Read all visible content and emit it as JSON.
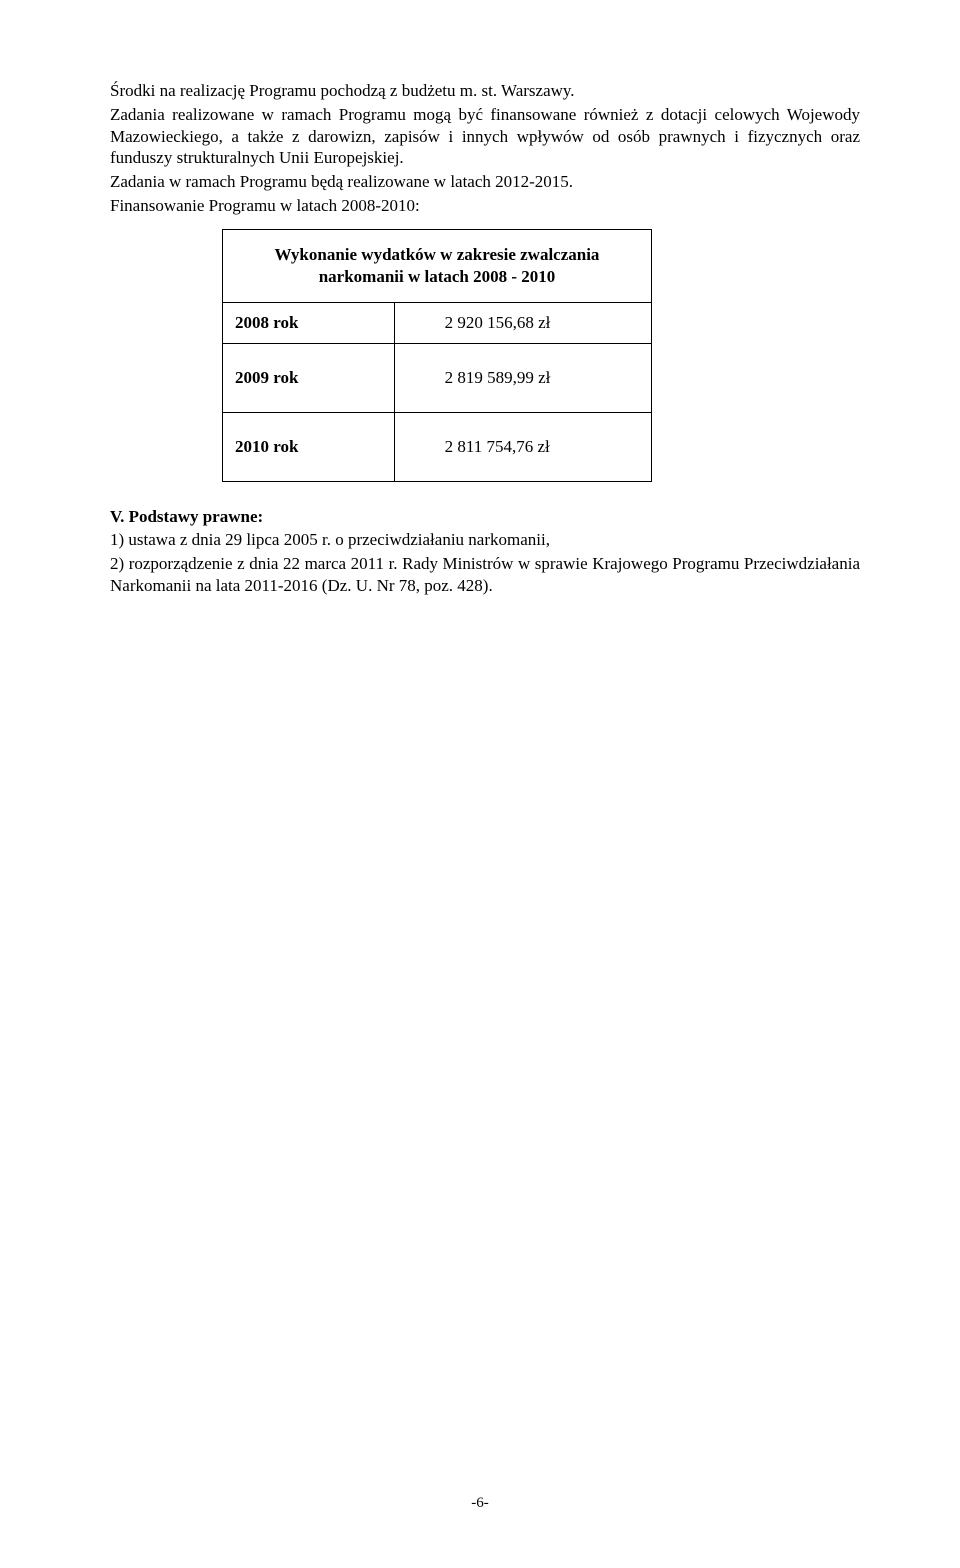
{
  "p1": "Środki na realizację Programu pochodzą z budżetu m. st. Warszawy.",
  "p2": "Zadania realizowane w ramach Programu mogą być finansowane również z dotacji celowych Wojewody Mazowieckiego, a także z darowizn, zapisów i innych wpływów od osób prawnych i fizycznych oraz funduszy strukturalnych Unii Europejskiej.",
  "p3": "Zadania w ramach Programu będą realizowane w latach 2012-2015.",
  "p4": "Finansowanie Programu w latach 2008-2010:",
  "table": {
    "header": "Wykonanie wydatków w zakresie zwalczania narkomanii w latach 2008 - 2010",
    "rows": [
      {
        "year": "2008 rok",
        "value": "2 920 156,68 zł"
      },
      {
        "year": "2009 rok",
        "value": "2 819 589,99 zł"
      },
      {
        "year": "2010 rok",
        "value": "2 811 754,76 zł"
      }
    ]
  },
  "section_v_title": "V. Podstawy prawne:",
  "item1": "1) ustawa z dnia 29 lipca 2005 r. o przeciwdziałaniu narkomanii,",
  "item2": "2) rozporządzenie z dnia 22 marca 2011 r. Rady Ministrów w sprawie Krajowego Programu Przeciwdziałania Narkomanii na lata 2011-2016 (Dz. U. Nr 78, poz. 428).",
  "page_no": "-6-"
}
